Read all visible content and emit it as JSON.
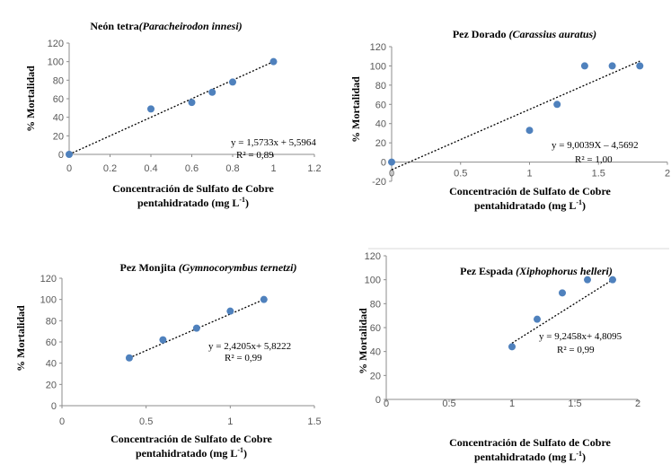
{
  "chart_data": [
    {
      "type": "scatter",
      "title": {
        "main": "Neón tetra",
        "species": "(Paracheirodon innesi)"
      },
      "xlabel": [
        "Concentración de Sulfato de Cobre",
        "pentahidratado  (mg L",
        "-1",
        ")"
      ],
      "ylabel": "% Mortalidad",
      "xlim": [
        0,
        1.2
      ],
      "ylim": [
        0,
        120
      ],
      "xticks": [
        "0",
        "0.2",
        "0.4",
        "0.6",
        "0.8",
        "1",
        "1.2"
      ],
      "yticks": [
        "0",
        "20",
        "40",
        "60",
        "80",
        "100",
        "120"
      ],
      "series": [
        {
          "x": [
            0,
            0.4,
            0.6,
            0.7,
            0.8,
            1.0
          ],
          "y": [
            0,
            49,
            56,
            67,
            78,
            100
          ]
        }
      ],
      "trendline": {
        "x": [
          0,
          1.0
        ],
        "y": [
          0,
          100
        ]
      },
      "equation": "y = 1,5733x + 5,5964",
      "r2": "R² = 0,89",
      "grid": false
    },
    {
      "type": "scatter",
      "title": {
        "main": "Pez Dorado  ",
        "species": "(Carassius auratus)"
      },
      "xlabel": [
        "Concentración  de Sulfato de Cobre",
        "pentahidratado  (mg L",
        "-1",
        ")"
      ],
      "ylabel": "% Mortalidad",
      "xlim": [
        0,
        2
      ],
      "ylim": [
        -20,
        120
      ],
      "xticks": [
        "0",
        "0.5",
        "1",
        "1.5",
        "2"
      ],
      "yticks": [
        "-20",
        "0",
        "20",
        "40",
        "60",
        "80",
        "100",
        "120"
      ],
      "series": [
        {
          "x": [
            0,
            1.0,
            1.2,
            1.4,
            1.6,
            1.8
          ],
          "y": [
            0,
            33,
            60,
            100,
            100,
            100
          ]
        }
      ],
      "trendline": {
        "x": [
          0,
          1.8
        ],
        "y": [
          -8,
          105
        ]
      },
      "equation": "y = 9,0039X – 4,5692",
      "r2": "R² = 1,00",
      "grid": false
    },
    {
      "type": "scatter",
      "title": {
        "main": "Pez Monjita  ",
        "species": "(Gymnocorymbus ternetzi)"
      },
      "xlabel": [
        "Concentración  de Sulfato de Cobre",
        "pentahidratado  (mg L",
        "-1",
        ")"
      ],
      "ylabel": "% Mortalidad",
      "xlim": [
        0,
        1.5
      ],
      "ylim": [
        0,
        120
      ],
      "xticks": [
        "0",
        "0.5",
        "1",
        "1.5"
      ],
      "yticks": [
        "0",
        "20",
        "40",
        "60",
        "80",
        "100",
        "120"
      ],
      "series": [
        {
          "x": [
            0.4,
            0.6,
            0.8,
            1.0,
            1.2
          ],
          "y": [
            45,
            62,
            73,
            89,
            100
          ]
        }
      ],
      "trendline": {
        "x": [
          0.4,
          1.2
        ],
        "y": [
          45,
          100
        ]
      },
      "equation": "y = 2,4205x+ 5,8222",
      "r2": "R² = 0,99",
      "grid": false
    },
    {
      "type": "scatter",
      "title": {
        "main": "Pez Espada  ",
        "species": "(Xiphophorus helleri)"
      },
      "xlabel": [
        "Concentración  de Sulfato de Cobre",
        "pentahidratado  (mg L",
        "-1",
        ")"
      ],
      "ylabel": "% Mortalidad",
      "xlim": [
        0,
        2
      ],
      "ylim": [
        0,
        120
      ],
      "xticks": [
        "0",
        "0.5",
        "1",
        "1.5",
        "2"
      ],
      "yticks": [
        "0",
        "20",
        "40",
        "60",
        "80",
        "100",
        "120"
      ],
      "series": [
        {
          "x": [
            1.0,
            1.2,
            1.4,
            1.6,
            1.8
          ],
          "y": [
            44,
            67,
            89,
            100,
            100
          ]
        }
      ],
      "trendline": {
        "x": [
          1.0,
          1.8
        ],
        "y": [
          47,
          100
        ]
      },
      "equation": "y = 9,2458x+ 4,8095",
      "r2": "R² = 0,99",
      "grid": false
    }
  ]
}
